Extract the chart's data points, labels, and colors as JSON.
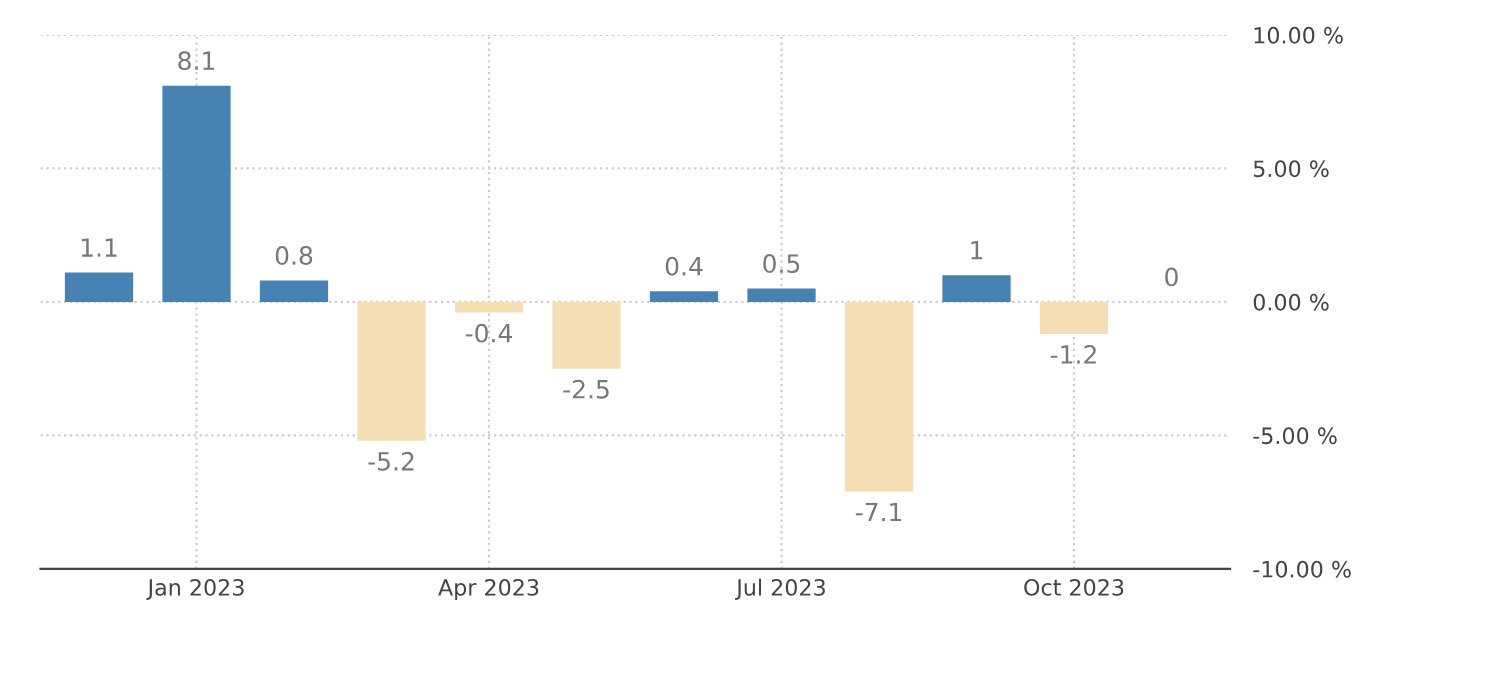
{
  "chart_data": {
    "type": "bar",
    "categories": [
      null,
      "Jan 2023",
      null,
      null,
      "Apr 2023",
      null,
      null,
      "Jul 2023",
      null,
      null,
      "Oct 2023",
      null
    ],
    "values": [
      1.1,
      8.1,
      0.8,
      -5.2,
      -0.4,
      -2.5,
      0.4,
      0.5,
      -7.1,
      1,
      -1.2,
      0
    ],
    "colors": [
      "#4682b4",
      "#4682b4",
      "#4682b4",
      "#f5deb3",
      "#f5deb3",
      "#f5deb3",
      "#4682b4",
      "#4682b4",
      "#f5deb3",
      "#4682b4",
      "#f5deb3",
      "#4682b4"
    ],
    "ylim": [
      -10,
      10
    ],
    "yticks": [
      {
        "value": -10,
        "label": "-10.00 %"
      },
      {
        "value": -5,
        "label": "-5.00 %"
      },
      {
        "value": 0,
        "label": "0.00 %"
      },
      {
        "value": 5,
        "label": "5.00 %"
      },
      {
        "value": 10,
        "label": "10.00 %"
      }
    ],
    "grid": true,
    "data_labels": true
  }
}
